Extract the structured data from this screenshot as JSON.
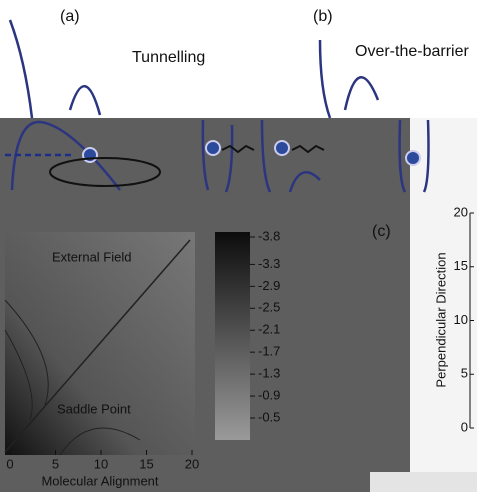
{
  "panels": {
    "a": {
      "label": "(a)",
      "title": "Tunnelling"
    },
    "b": {
      "label": "(b)",
      "title": "Over-the-barrier"
    },
    "c": {
      "label": "(c)",
      "y_axis_label": "Perpendicular  Direction",
      "ylim": [
        0,
        20
      ],
      "yticks": [
        20,
        15,
        10,
        5,
        0
      ]
    }
  },
  "map": {
    "x_axis_label": "Molecular Alignment",
    "xlim": [
      0,
      20
    ],
    "xticks": [
      0,
      5,
      10,
      15,
      20
    ],
    "annotations": [
      "External Field",
      "Saddle Point"
    ],
    "colorbar": {
      "lim": [
        -3.8,
        -0.5
      ],
      "ticks": [
        -3.8,
        -3.3,
        -2.9,
        -2.5,
        -2.1,
        -1.7,
        -1.3,
        -0.9,
        -0.5
      ]
    }
  }
}
